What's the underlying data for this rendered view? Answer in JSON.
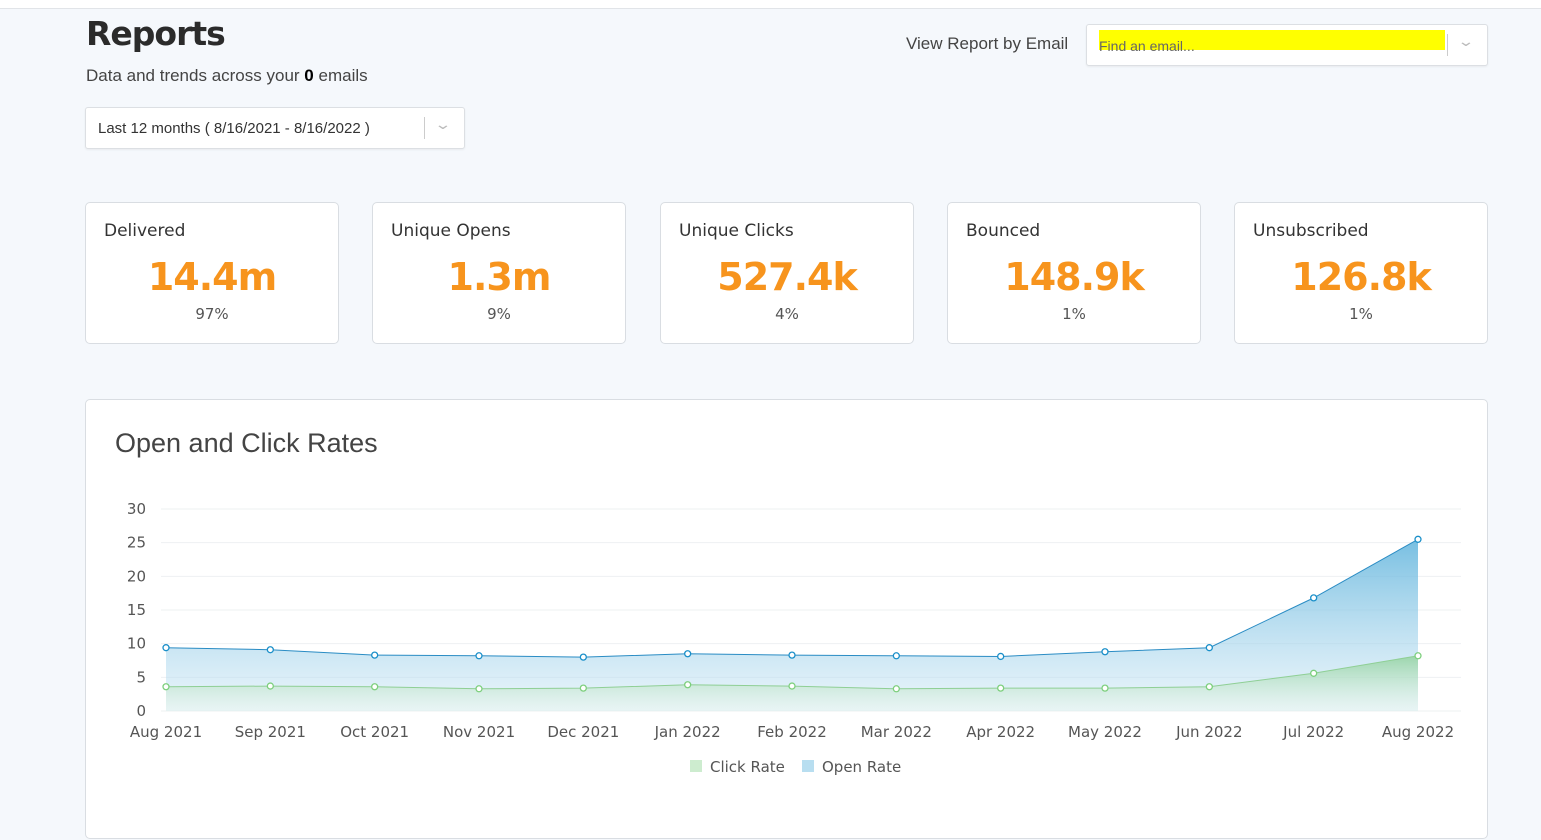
{
  "header": {
    "title": "Reports",
    "subtitle_pre": "Data and trends across your",
    "subtitle_count": "0",
    "subtitle_post": "emails"
  },
  "date_range": {
    "value": "Last 12 months ( 8/16/2021 - 8/16/2022 )"
  },
  "email_filter": {
    "label": "View Report by Email",
    "placeholder": "Find an email..."
  },
  "stats": [
    {
      "label": "Delivered",
      "value": "14.4m",
      "percent": "97%"
    },
    {
      "label": "Unique Opens",
      "value": "1.3m",
      "percent": "9%"
    },
    {
      "label": "Unique Clicks",
      "value": "527.4k",
      "percent": "4%"
    },
    {
      "label": "Bounced",
      "value": "148.9k",
      "percent": "1%"
    },
    {
      "label": "Unsubscribed",
      "value": "126.8k",
      "percent": "1%"
    }
  ],
  "colors": {
    "accent": "#f7941d",
    "open": "#1a8fc9",
    "click": "#7dcf7d",
    "highlight": "#ffff00"
  },
  "chart_data": {
    "type": "area",
    "title": "Open and Click Rates",
    "categories": [
      "Aug 2021",
      "Sep 2021",
      "Oct 2021",
      "Nov 2021",
      "Dec 2021",
      "Jan 2022",
      "Feb 2022",
      "Mar 2022",
      "Apr 2022",
      "May 2022",
      "Jun 2022",
      "Jul 2022",
      "Aug 2022"
    ],
    "ylim": [
      0,
      30
    ],
    "yticks": [
      "0",
      "5",
      "10",
      "15",
      "20",
      "25",
      "30"
    ],
    "series": [
      {
        "name": "Open Rate",
        "values": [
          9.4,
          9.1,
          8.3,
          8.2,
          8.0,
          8.5,
          8.3,
          8.2,
          8.1,
          8.8,
          9.4,
          16.8,
          25.5
        ]
      },
      {
        "name": "Click Rate",
        "values": [
          3.6,
          3.7,
          3.6,
          3.3,
          3.4,
          3.9,
          3.7,
          3.3,
          3.4,
          3.4,
          3.6,
          5.6,
          8.2
        ]
      }
    ],
    "legend": [
      "Click Rate",
      "Open Rate"
    ],
    "legend_position": "bottom",
    "grid": true
  }
}
